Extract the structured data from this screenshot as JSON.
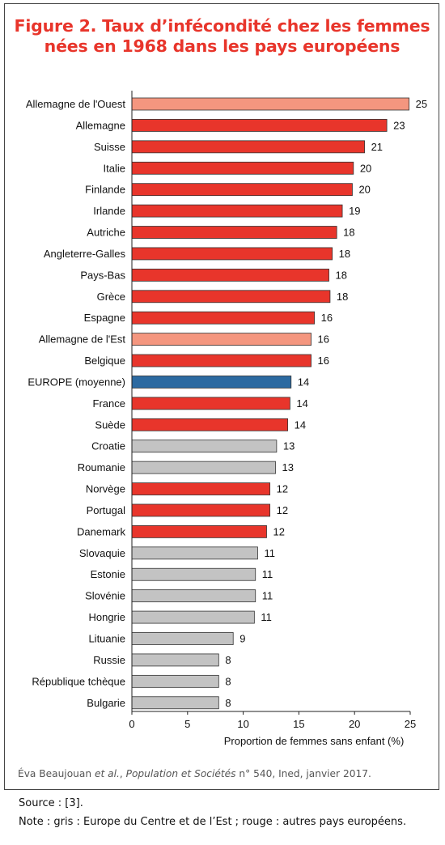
{
  "header": {
    "title_line1": "Figure 2. Taux d’infécondité chez les femmes",
    "title_line2": "nées en 1968 dans les pays européens"
  },
  "colors": {
    "west": "#e8352b",
    "east": "#c3c3c3",
    "germany_historic": "#f4967f",
    "europe_average": "#2c6aa1",
    "title": "#e8352b"
  },
  "chart_data": {
    "type": "bar",
    "orientation": "horizontal",
    "categories": [
      "Allemagne de l'Ouest",
      "Allemagne",
      "Suisse",
      "Italie",
      "Finlande",
      "Irlande",
      "Autriche",
      "Angleterre-Galles",
      "Pays-Bas",
      "Grèce",
      "Espagne",
      "Allemagne de l'Est",
      "Belgique",
      "EUROPE (moyenne)",
      "France",
      "Suède",
      "Croatie",
      "Roumanie",
      "Norvège",
      "Portugal",
      "Danemark",
      "Slovaquie",
      "Estonie",
      "Slovénie",
      "Hongrie",
      "Lituanie",
      "Russie",
      "République tchèque",
      "Bulgarie"
    ],
    "values": [
      24.9,
      22.9,
      20.9,
      19.9,
      19.8,
      18.9,
      18.4,
      18.0,
      17.7,
      17.8,
      16.4,
      16.1,
      16.1,
      14.3,
      14.2,
      14.0,
      13.0,
      12.9,
      12.4,
      12.4,
      12.1,
      11.3,
      11.1,
      11.1,
      11.0,
      9.1,
      7.8,
      7.8,
      7.8
    ],
    "value_labels": [
      "25",
      "23",
      "21",
      "20",
      "20",
      "19",
      "18",
      "18",
      "18",
      "18",
      "16",
      "16",
      "16",
      "14",
      "14",
      "14",
      "13",
      "13",
      "12",
      "12",
      "12",
      "11",
      "11",
      "11",
      "11",
      "9",
      "8",
      "8",
      "8"
    ],
    "groups": [
      "germany_historic",
      "west",
      "west",
      "west",
      "west",
      "west",
      "west",
      "west",
      "west",
      "west",
      "west",
      "germany_historic",
      "west",
      "europe_average",
      "west",
      "west",
      "east",
      "east",
      "west",
      "west",
      "west",
      "east",
      "east",
      "east",
      "east",
      "east",
      "east",
      "east",
      "east"
    ],
    "xlim": [
      0,
      25
    ],
    "xticks": [
      "0",
      "5",
      "10",
      "15",
      "20",
      "25"
    ],
    "xlabel": "Proportion de femmes sans enfant (%)",
    "ylabel": "",
    "grid": false,
    "legend": "none"
  },
  "footer": {
    "citation_author": "Éva Beaujouan ",
    "citation_etal": "et al.",
    "citation_sep": ", ",
    "citation_journal": "Population et Sociétés",
    "citation_rest": " n° 540, Ined, janvier 2017.",
    "source": "Source : [3].",
    "note": "Note : gris : Europe du Centre et de l’Est ;  rouge : autres pays européens."
  }
}
